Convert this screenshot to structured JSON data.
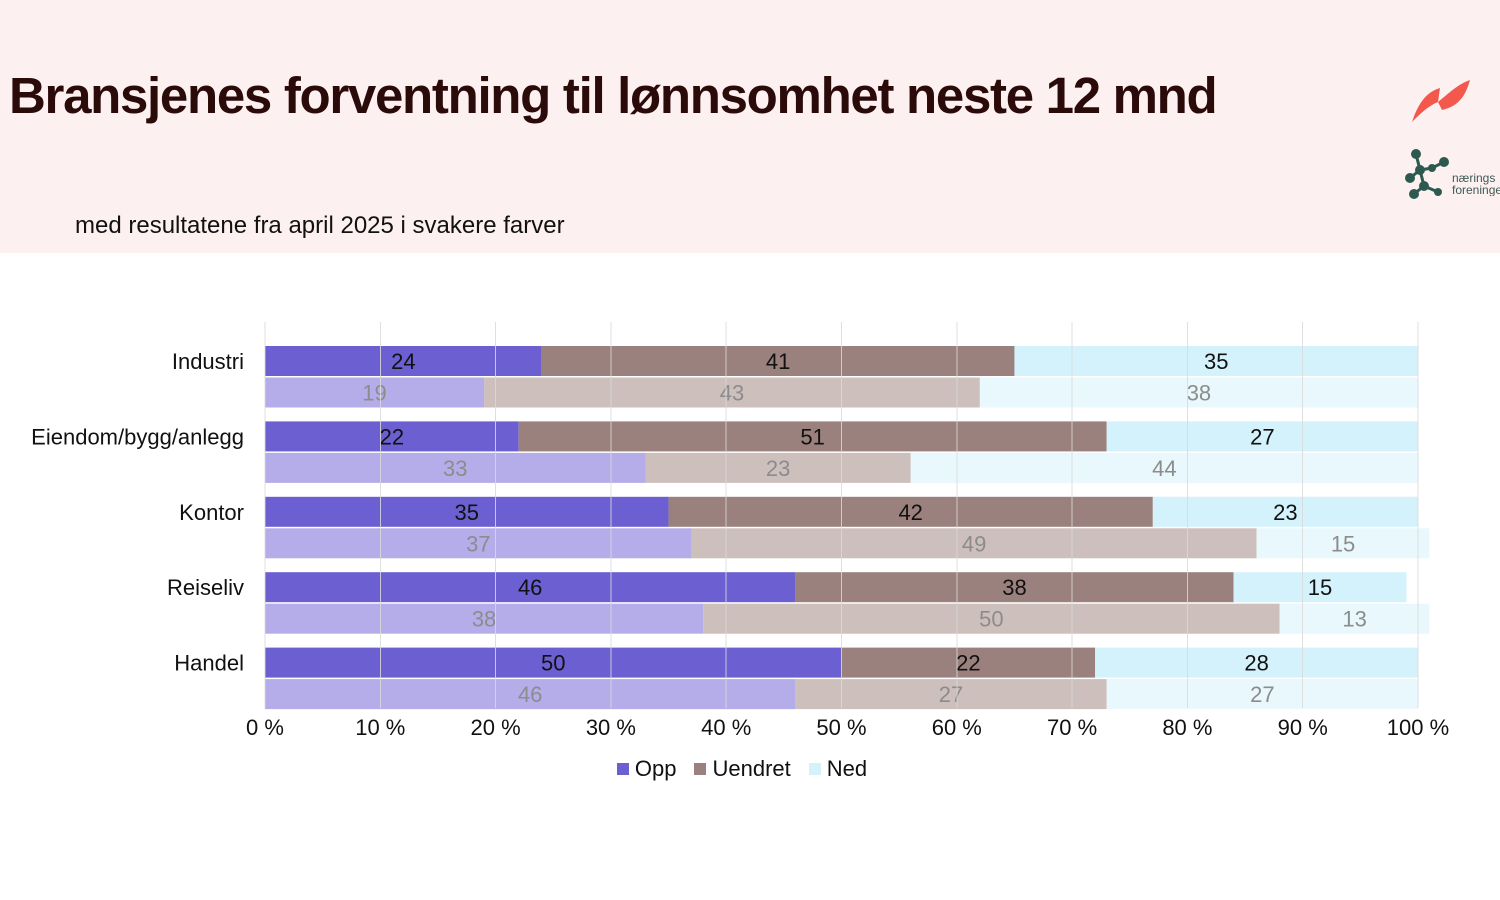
{
  "header": {
    "title": "Bransjenes forventning til lønnsomhet neste 12 mnd",
    "subtitle": "med resultatene fra april 2025 i svakere farver",
    "logo_text_line1": "nærings",
    "logo_text_line2": "foreninge"
  },
  "colors": {
    "header_bg": "#fdf0f0",
    "opp": "#6c5fd2",
    "opp_faded": "#b5acea",
    "uendret": "#9a817d",
    "uendret_faded": "#cdbfbc",
    "ned": "#d4f2fb",
    "ned_faded": "#e8f8fd",
    "logo_red": "#f2584b",
    "logo_green": "#2d5a50"
  },
  "chart_data": {
    "type": "bar",
    "orientation": "horizontal",
    "stacked": "percent",
    "categories": [
      "Industri",
      "Eiendom/bygg/anlegg",
      "Kontor",
      "Reiseliv",
      "Handel"
    ],
    "series_names": [
      "Opp",
      "Uendret",
      "Ned"
    ],
    "current": [
      [
        24,
        41,
        35
      ],
      [
        22,
        51,
        27
      ],
      [
        35,
        42,
        23
      ],
      [
        46,
        38,
        15
      ],
      [
        50,
        22,
        28
      ]
    ],
    "previous": [
      [
        19,
        43,
        38
      ],
      [
        33,
        23,
        44
      ],
      [
        37,
        49,
        15
      ],
      [
        38,
        50,
        13
      ],
      [
        46,
        27,
        27
      ]
    ],
    "x_ticks": [
      "0 %",
      "10 %",
      "20 %",
      "30 %",
      "40 %",
      "50 %",
      "60 %",
      "70 %",
      "80 %",
      "90 %",
      "100 %"
    ],
    "xlim": [
      0,
      100
    ],
    "grid": true,
    "legend": {
      "position": "bottom",
      "items": [
        "Opp",
        "Uendret",
        "Ned"
      ]
    }
  }
}
